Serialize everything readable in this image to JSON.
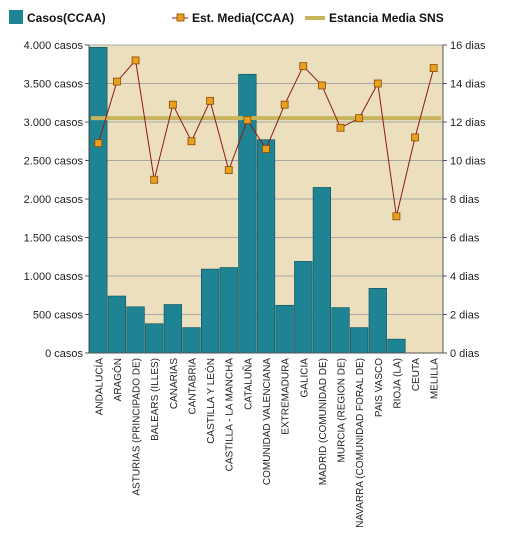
{
  "chart_data": {
    "type": "bar+line",
    "categories": [
      "ANDALUCÍA",
      "ARAGÓN",
      "ASTURIAS (PRINCIPADO DE)",
      "BALEARS (ILLES)",
      "CANARIAS",
      "CANTABRIA",
      "CASTILLA Y LEÓN",
      "CASTILLA - LA MANCHA",
      "CATALUÑA",
      "COMUNIDAD VALENCIANA",
      "EXTREMADURA",
      "GALICIA",
      "MADRID (COMUNIDAD DE)",
      "MURCIA (REGION DE)",
      "NAVARRA (COMUNIDAD FORAL DE)",
      "PAIS VASCO",
      "RIOJA (LA)",
      "CEUTA",
      "MELILLA"
    ],
    "series": [
      {
        "name": "Casos(CCAA)",
        "type": "bar",
        "axis": "left",
        "color": "#1e8494",
        "values": [
          3970,
          740,
          600,
          380,
          630,
          330,
          1090,
          1110,
          3620,
          2770,
          620,
          1190,
          2150,
          590,
          330,
          840,
          180,
          0,
          0
        ]
      },
      {
        "name": "Est. Media(CCAA)",
        "type": "line",
        "axis": "right",
        "color": "#e8a020",
        "line_color": "#8b1a1a",
        "values": [
          10.9,
          14.1,
          15.2,
          9.0,
          12.9,
          11.0,
          13.1,
          9.5,
          12.1,
          10.6,
          12.9,
          14.9,
          13.9,
          11.7,
          12.2,
          14.0,
          7.1,
          11.2,
          14.8
        ]
      },
      {
        "name": "Estancia Media SNS",
        "type": "reference-line",
        "axis": "right",
        "color": "#c8b45a",
        "value": 12.2
      }
    ],
    "left_axis": {
      "min": 0,
      "max": 4000,
      "ticks": [
        "0 casos",
        "500 casos",
        "1.000 casos",
        "1.500 casos",
        "2.000 casos",
        "2.500 casos",
        "3.000 casos",
        "3.500 casos",
        "4.000 casos"
      ]
    },
    "right_axis": {
      "min": 0,
      "max": 16,
      "ticks": [
        "0 dias",
        "2 dias",
        "4 dias",
        "6 dias",
        "8 dias",
        "10 dias",
        "12 dias",
        "14 dias",
        "16 dias"
      ]
    },
    "plot_background": "#ebdfbd",
    "legend": "top"
  }
}
